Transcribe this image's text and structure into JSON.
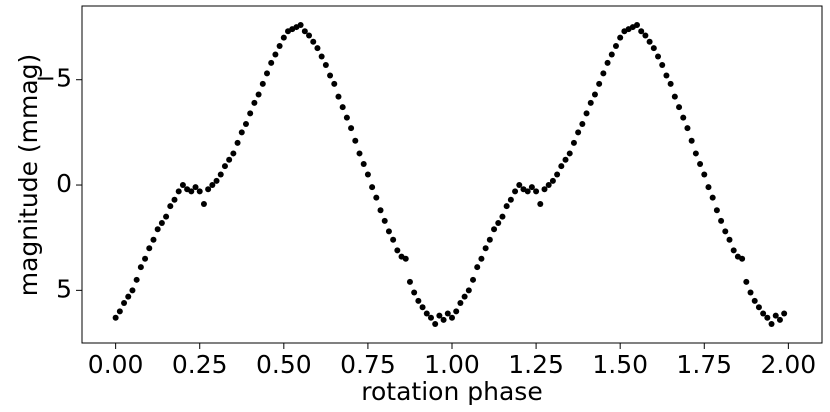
{
  "chart_data": {
    "type": "scatter",
    "xlabel": "rotation phase",
    "ylabel": "magnitude (mmag)",
    "xlim": [
      -0.1,
      2.1
    ],
    "ylim": [
      -8.5,
      7.5
    ],
    "y_inverted": true,
    "xticks": [
      {
        "value": 0,
        "label": "0.00"
      },
      {
        "value": 0.25,
        "label": "0.25"
      },
      {
        "value": 0.5,
        "label": "0.50"
      },
      {
        "value": 0.75,
        "label": "0.75"
      },
      {
        "value": 1,
        "label": "1.00"
      },
      {
        "value": 1.25,
        "label": "1.25"
      },
      {
        "value": 1.5,
        "label": "1.50"
      },
      {
        "value": 1.75,
        "label": "1.75"
      },
      {
        "value": 2,
        "label": "2.00"
      }
    ],
    "yticks": [
      {
        "value": -5,
        "label": "−5"
      },
      0,
      5
    ],
    "color": "#000000",
    "x": [
      0,
      0.0125,
      0.025,
      0.0375,
      0.05,
      0.0625,
      0.075,
      0.0875,
      0.1,
      0.1125,
      0.125,
      0.1375,
      0.15,
      0.1625,
      0.175,
      0.1875,
      0.2,
      0.2125,
      0.225,
      0.2375,
      0.25,
      0.2625,
      0.275,
      0.2875,
      0.3,
      0.3125,
      0.325,
      0.3375,
      0.35,
      0.3625,
      0.375,
      0.3875,
      0.4,
      0.4125,
      0.425,
      0.4375,
      0.45,
      0.4625,
      0.475,
      0.4875,
      0.5,
      0.5125,
      0.525,
      0.5375,
      0.55,
      0.5625,
      0.575,
      0.5875,
      0.6,
      0.6125,
      0.625,
      0.6375,
      0.65,
      0.6625,
      0.675,
      0.6875,
      0.7,
      0.7125,
      0.725,
      0.7375,
      0.75,
      0.7625,
      0.775,
      0.7875,
      0.8,
      0.8125,
      0.825,
      0.8375,
      0.85,
      0.8625,
      0.875,
      0.8875,
      0.9,
      0.9125,
      0.925,
      0.9375,
      0.95,
      0.9625,
      0.975,
      0.9875,
      1,
      1.0125,
      1.025,
      1.0375,
      1.05,
      1.0625,
      1.075,
      1.0875,
      1.1,
      1.1125,
      1.125,
      1.1375,
      1.15,
      1.1625,
      1.175,
      1.1875,
      1.2,
      1.2125,
      1.225,
      1.2375,
      1.25,
      1.2625,
      1.275,
      1.2875,
      1.3,
      1.3125,
      1.325,
      1.3375,
      1.35,
      1.3625,
      1.375,
      1.3875,
      1.4,
      1.4125,
      1.425,
      1.4375,
      1.45,
      1.4625,
      1.475,
      1.4875,
      1.5,
      1.5125,
      1.525,
      1.5375,
      1.55,
      1.5625,
      1.575,
      1.5875,
      1.6,
      1.6125,
      1.625,
      1.6375,
      1.65,
      1.6625,
      1.675,
      1.6875,
      1.7,
      1.7125,
      1.725,
      1.7375,
      1.75,
      1.7625,
      1.775,
      1.7875,
      1.8,
      1.8125,
      1.825,
      1.8375,
      1.85,
      1.8625,
      1.875,
      1.8875,
      1.9,
      1.9125,
      1.925,
      1.9375,
      1.95,
      1.9625,
      1.975,
      1.9875
    ],
    "values": [
      6.3,
      6.0,
      5.6,
      5.3,
      5.0,
      4.5,
      3.9,
      3.5,
      3.0,
      2.6,
      2.1,
      1.8,
      1.5,
      1.0,
      0.7,
      0.3,
      0.0,
      0.2,
      0.3,
      0.1,
      0.3,
      0.9,
      0.2,
      0.0,
      -0.2,
      -0.5,
      -0.9,
      -1.2,
      -1.5,
      -2.0,
      -2.5,
      -2.9,
      -3.4,
      -3.9,
      -4.3,
      -4.8,
      -5.3,
      -5.8,
      -6.2,
      -6.6,
      -7.0,
      -7.3,
      -7.4,
      -7.5,
      -7.6,
      -7.3,
      -7.1,
      -6.8,
      -6.5,
      -6.1,
      -5.7,
      -5.2,
      -4.8,
      -4.2,
      -3.7,
      -3.2,
      -2.7,
      -2.1,
      -1.5,
      -1.0,
      -0.5,
      0.1,
      0.6,
      1.2,
      1.7,
      2.2,
      2.6,
      3.1,
      3.4,
      3.5,
      4.6,
      5.1,
      5.5,
      5.8,
      6.1,
      6.3,
      6.6,
      6.2,
      6.4,
      6.1,
      6.3,
      6.0,
      5.6,
      5.3,
      5.0,
      4.5,
      3.9,
      3.5,
      3.0,
      2.6,
      2.1,
      1.8,
      1.5,
      1.0,
      0.7,
      0.3,
      0.0,
      0.2,
      0.3,
      0.1,
      0.3,
      0.9,
      0.2,
      0.0,
      -0.2,
      -0.5,
      -0.9,
      -1.2,
      -1.5,
      -2.0,
      -2.5,
      -2.9,
      -3.4,
      -3.9,
      -4.3,
      -4.8,
      -5.3,
      -5.8,
      -6.2,
      -6.6,
      -7.0,
      -7.3,
      -7.4,
      -7.5,
      -7.6,
      -7.3,
      -7.1,
      -6.8,
      -6.5,
      -6.1,
      -5.7,
      -5.2,
      -4.8,
      -4.2,
      -3.7,
      -3.2,
      -2.7,
      -2.1,
      -1.5,
      -1.0,
      -0.5,
      0.1,
      0.6,
      1.2,
      1.7,
      2.2,
      2.6,
      3.1,
      3.4,
      3.5,
      4.6,
      5.1,
      5.5,
      5.8,
      6.1,
      6.3,
      6.6,
      6.2,
      6.4,
      6.1
    ]
  }
}
